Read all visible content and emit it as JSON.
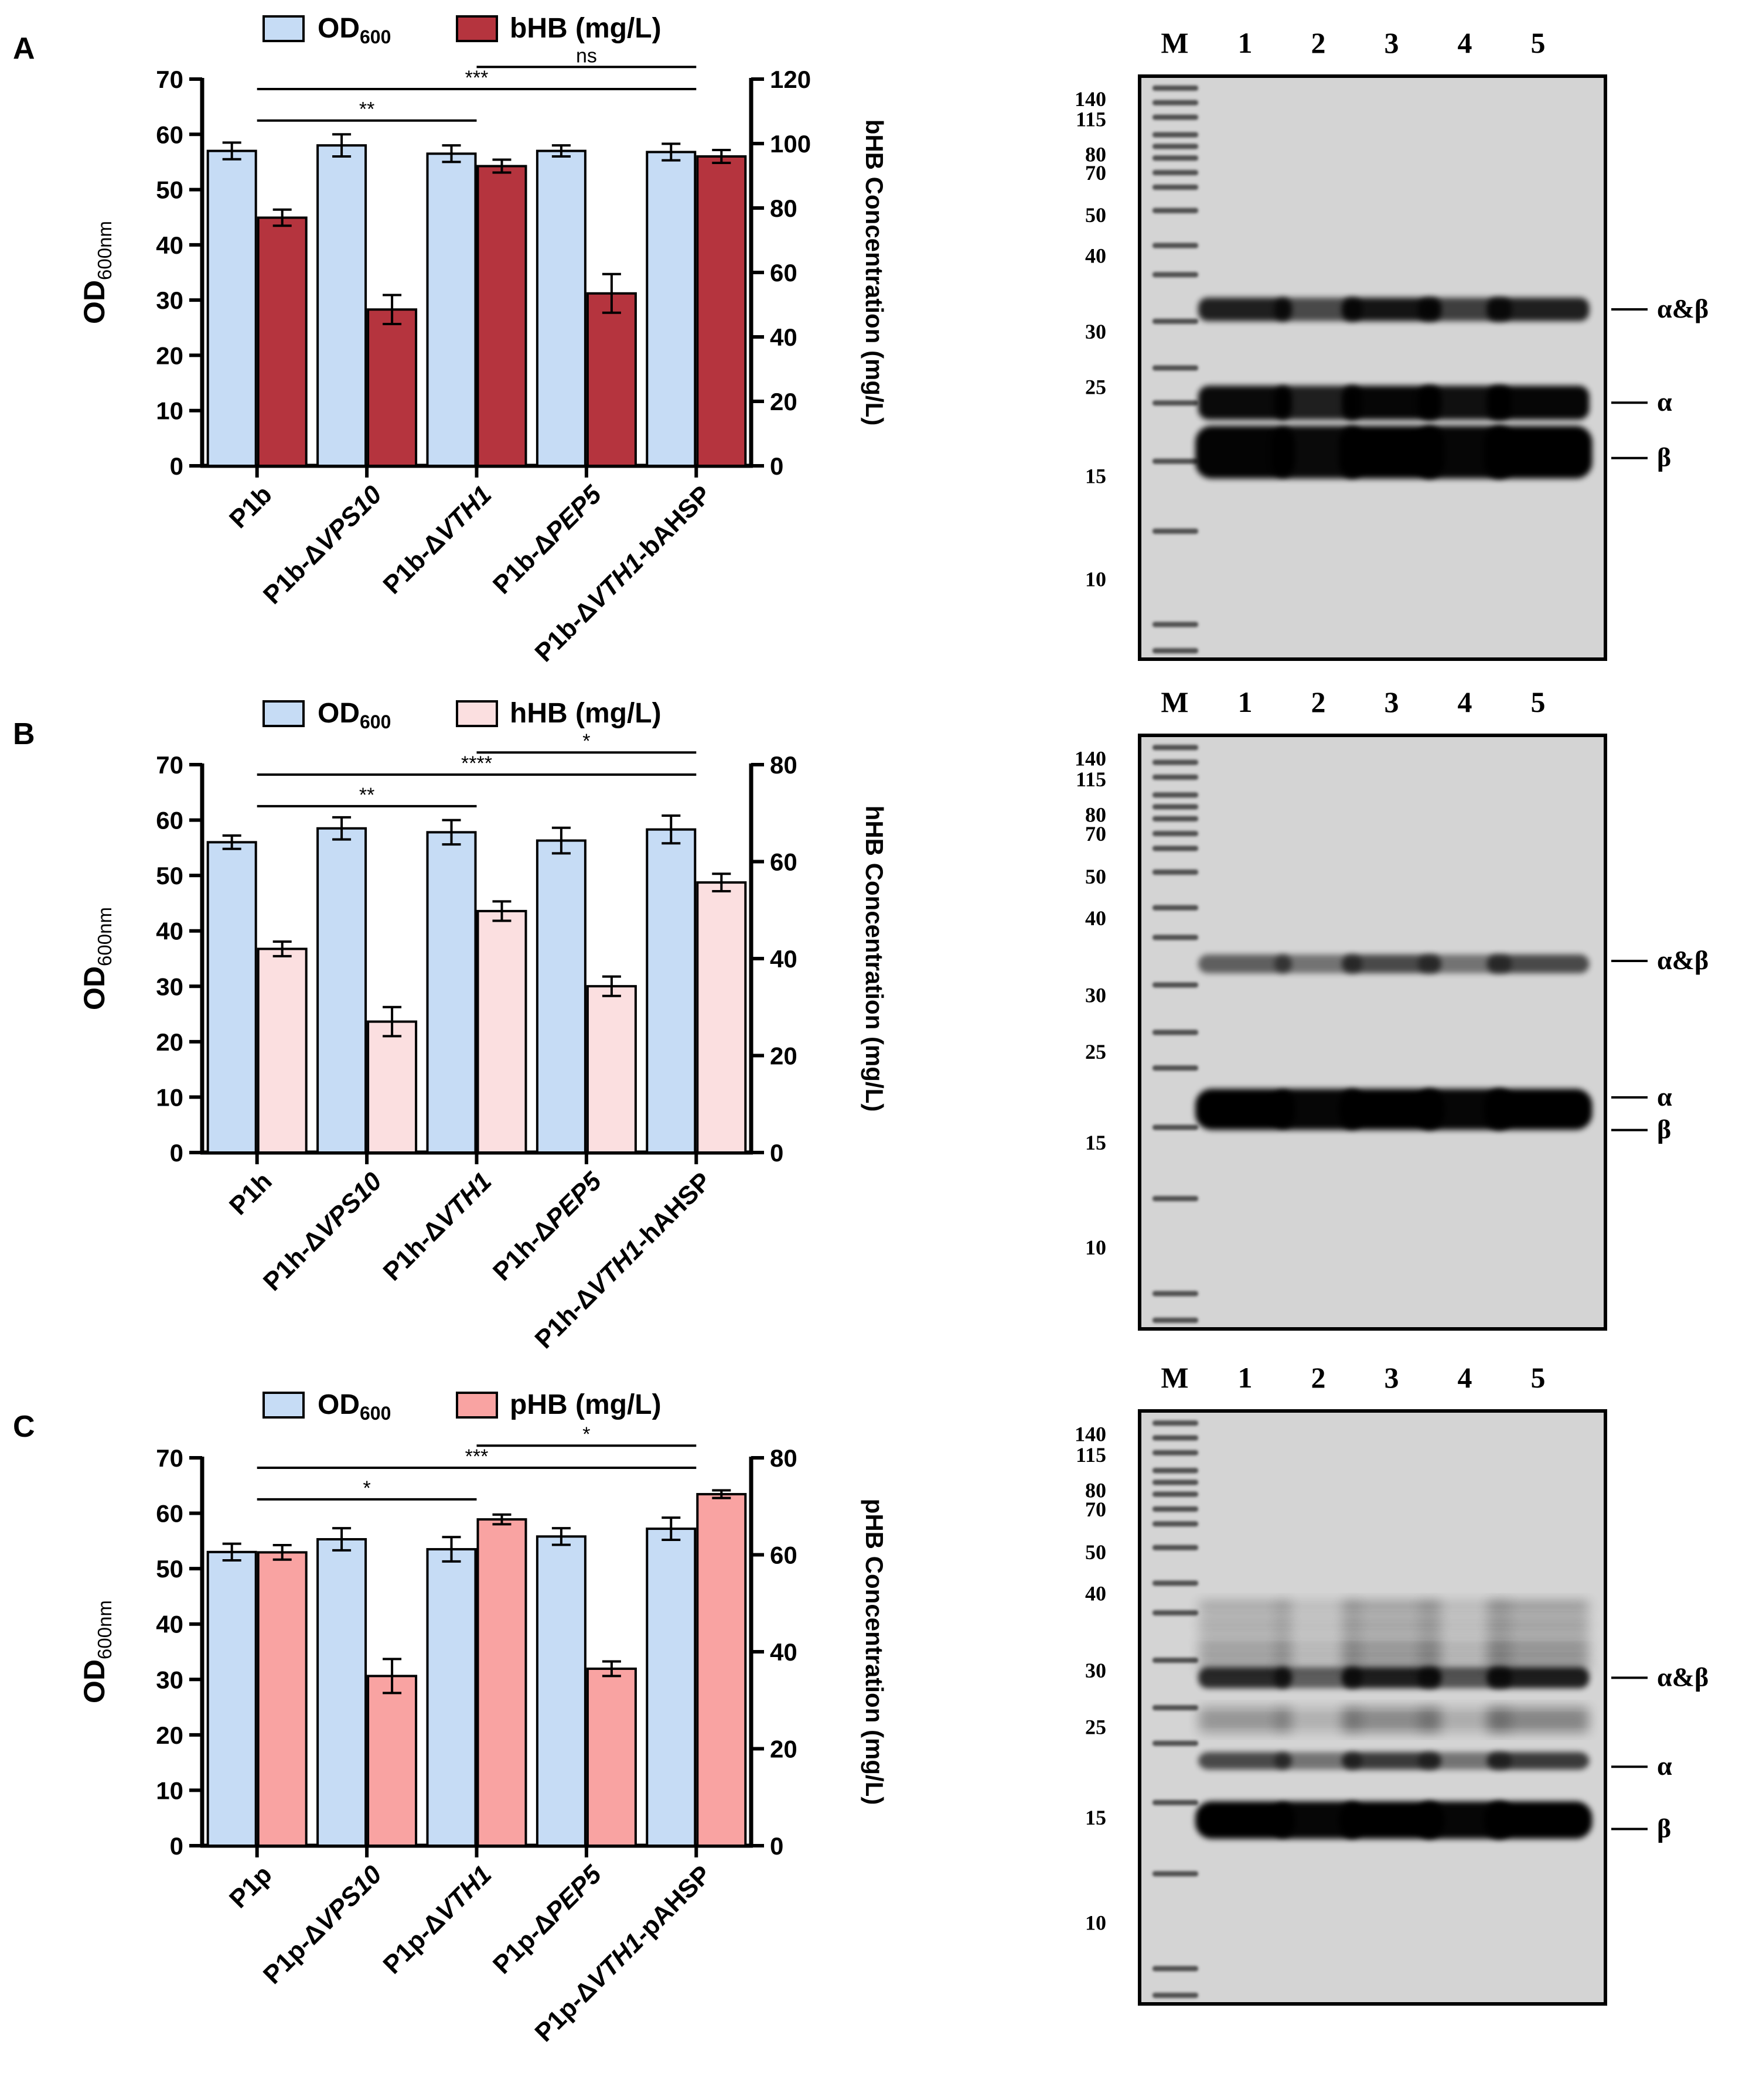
{
  "panels": [
    {
      "letter": "A",
      "chart_data": {
        "type": "bar",
        "categories": [
          "P1b",
          "P1b-ΔVPS10",
          "P1b-ΔVTH1",
          "P1b-ΔPEP5",
          "P1b-ΔVTH1-bAHSP"
        ],
        "category_parts": [
          [
            {
              "t": "P1b",
              "i": false
            }
          ],
          [
            {
              "t": "P1b-Δ",
              "i": false
            },
            {
              "t": "VPS10",
              "i": true
            }
          ],
          [
            {
              "t": "P1b-Δ",
              "i": false
            },
            {
              "t": "VTH1",
              "i": true
            }
          ],
          [
            {
              "t": "P1b-Δ",
              "i": false
            },
            {
              "t": "PEP5",
              "i": true
            }
          ],
          [
            {
              "t": "P1b-Δ",
              "i": false
            },
            {
              "t": "VTH1",
              "i": true
            },
            {
              "t": "-bAHSP",
              "i": false
            }
          ]
        ],
        "series": [
          {
            "name": "OD600",
            "name_main": "OD",
            "name_sub": "600",
            "axis": "left",
            "values": [
              57,
              58,
              56.5,
              57,
              56.8
            ],
            "errors": [
              1.5,
              2,
              1.5,
              1,
              1.5
            ],
            "color": "#c6dcf5"
          },
          {
            "name": "bHB (mg/L)",
            "axis": "right",
            "values": [
              77,
              48.5,
              93,
              53.5,
              96
            ],
            "errors": [
              2.5,
              4.5,
              2,
              6,
              2
            ],
            "color": "#b5343e"
          }
        ],
        "left_axis": {
          "label_main": "OD",
          "label_sub": "600nm",
          "ylim": [
            0,
            70
          ],
          "ticks": [
            "0",
            "10",
            "20",
            "30",
            "40",
            "50",
            "60",
            "70"
          ]
        },
        "right_axis": {
          "label": "bHB Concentration (mg/L)",
          "ylim": [
            0,
            120
          ],
          "ticks": [
            "0",
            "20",
            "40",
            "60",
            "80",
            "100",
            "120"
          ]
        },
        "legend_position": "top",
        "significance": [
          {
            "from": 0,
            "to": 2,
            "label": "**"
          },
          {
            "from": 0,
            "to": 4,
            "label": "***"
          },
          {
            "from": 2,
            "to": 4,
            "label": "ns"
          }
        ]
      },
      "gel": {
        "lanes": [
          "M",
          "1",
          "2",
          "3",
          "4",
          "5"
        ],
        "markers": [
          "140",
          "115",
          "80",
          "70",
          "50",
          "40",
          "30",
          "25",
          "15",
          "10"
        ],
        "band_labels": [
          "α&β",
          "α",
          "β"
        ],
        "band_intensity": {
          "alpha_beta": [
            0.85,
            0.65,
            0.9,
            0.7,
            0.85
          ],
          "alpha": [
            0.95,
            0.85,
            0.97,
            0.92,
            0.97
          ],
          "beta": [
            0.98,
            0.95,
            1.0,
            0.97,
            1.0
          ]
        }
      }
    },
    {
      "letter": "B",
      "chart_data": {
        "type": "bar",
        "categories": [
          "P1h",
          "P1h-ΔVPS10",
          "P1h-ΔVTH1",
          "P1h-ΔPEP5",
          "P1h-ΔVTH1-hAHSP"
        ],
        "category_parts": [
          [
            {
              "t": "P1h",
              "i": false
            }
          ],
          [
            {
              "t": "P1h-Δ",
              "i": false
            },
            {
              "t": "VPS10",
              "i": true
            }
          ],
          [
            {
              "t": "P1h-Δ",
              "i": false
            },
            {
              "t": "VTH1",
              "i": true
            }
          ],
          [
            {
              "t": "P1h-Δ",
              "i": false
            },
            {
              "t": "PEP5",
              "i": true
            }
          ],
          [
            {
              "t": "P1h-Δ",
              "i": false
            },
            {
              "t": "VTH1",
              "i": true
            },
            {
              "t": "-hAHSP",
              "i": false
            }
          ]
        ],
        "series": [
          {
            "name": "OD600",
            "name_main": "OD",
            "name_sub": "600",
            "axis": "left",
            "values": [
              56,
              58.5,
              57.8,
              56.3,
              58.3
            ],
            "errors": [
              1.2,
              2,
              2.2,
              2.3,
              2.5
            ],
            "color": "#c6dcf5"
          },
          {
            "name": "hHB (mg/L)",
            "axis": "right",
            "values": [
              42,
              27,
              49.8,
              34.3,
              55.7
            ],
            "errors": [
              1.5,
              3,
              2,
              2,
              1.8
            ],
            "color": "#fbdfe0"
          }
        ],
        "left_axis": {
          "label_main": "OD",
          "label_sub": "600nm",
          "ylim": [
            0,
            70
          ],
          "ticks": [
            "0",
            "10",
            "20",
            "30",
            "40",
            "50",
            "60",
            "70"
          ]
        },
        "right_axis": {
          "label": "hHB Concentration (mg/L)",
          "ylim": [
            0,
            80
          ],
          "ticks": [
            "0",
            "20",
            "40",
            "60",
            "80"
          ]
        },
        "legend_position": "top",
        "significance": [
          {
            "from": 0,
            "to": 2,
            "label": "**"
          },
          {
            "from": 0,
            "to": 4,
            "label": "****"
          },
          {
            "from": 2,
            "to": 4,
            "label": "*"
          }
        ]
      },
      "gel": {
        "lanes": [
          "M",
          "1",
          "2",
          "3",
          "4",
          "5"
        ],
        "markers": [
          "140",
          "115",
          "80",
          "70",
          "50",
          "40",
          "30",
          "25",
          "15",
          "10"
        ],
        "band_labels": [
          "α&β",
          "α",
          "β"
        ],
        "band_intensity": {
          "alpha_beta": [
            0.55,
            0.45,
            0.65,
            0.45,
            0.65
          ],
          "alpha": [
            1,
            1,
            1,
            1,
            1
          ],
          "beta": [
            1,
            0.97,
            1,
            0.97,
            1
          ]
        }
      }
    },
    {
      "letter": "C",
      "chart_data": {
        "type": "bar",
        "categories": [
          "P1p",
          "P1p-ΔVPS10",
          "P1p-ΔVTH1",
          "P1p-ΔPEP5",
          "P1p-ΔVTH1-pAHSP"
        ],
        "category_parts": [
          [
            {
              "t": "P1p",
              "i": false
            }
          ],
          [
            {
              "t": "P1p-Δ",
              "i": false
            },
            {
              "t": "VPS10",
              "i": true
            }
          ],
          [
            {
              "t": "P1p-Δ",
              "i": false
            },
            {
              "t": "VTH1",
              "i": true
            }
          ],
          [
            {
              "t": "P1p-Δ",
              "i": false
            },
            {
              "t": "PEP5",
              "i": true
            }
          ],
          [
            {
              "t": "P1p-Δ",
              "i": false
            },
            {
              "t": "VTH1",
              "i": true
            },
            {
              "t": "-pAHSP",
              "i": false
            }
          ]
        ],
        "series": [
          {
            "name": "OD600",
            "name_main": "OD",
            "name_sub": "600",
            "axis": "left",
            "values": [
              53,
              55.3,
              53.5,
              55.8,
              57.2
            ],
            "errors": [
              1.5,
              2,
              2.2,
              1.5,
              2
            ],
            "color": "#c6dcf5"
          },
          {
            "name": "pHB (mg/L)",
            "axis": "right",
            "values": [
              60.5,
              35,
              67.3,
              36.5,
              72.5
            ],
            "errors": [
              1.5,
              3.5,
              1,
              1.5,
              0.8
            ],
            "color": "#f9a3a2"
          }
        ],
        "left_axis": {
          "label_main": "OD",
          "label_sub": "600nm",
          "ylim": [
            0,
            70
          ],
          "ticks": [
            "0",
            "10",
            "20",
            "30",
            "40",
            "50",
            "60",
            "70"
          ]
        },
        "right_axis": {
          "label": "pHB Concentration (mg/L)",
          "ylim": [
            0,
            80
          ],
          "ticks": [
            "0",
            "20",
            "40",
            "60",
            "80"
          ]
        },
        "legend_position": "top",
        "significance": [
          {
            "from": 0,
            "to": 2,
            "label": "*"
          },
          {
            "from": 0,
            "to": 4,
            "label": "***"
          },
          {
            "from": 2,
            "to": 4,
            "label": "*"
          }
        ]
      },
      "gel": {
        "lanes": [
          "M",
          "1",
          "2",
          "3",
          "4",
          "5"
        ],
        "markers": [
          "140",
          "115",
          "80",
          "70",
          "50",
          "40",
          "30",
          "25",
          "15",
          "10"
        ],
        "band_labels": [
          "α&β",
          "α",
          "β"
        ],
        "band_intensity": {
          "alpha_beta": [
            0.8,
            0.55,
            0.85,
            0.6,
            0.85
          ],
          "alpha": [
            0.65,
            0.45,
            0.72,
            0.45,
            0.72
          ],
          "beta": [
            1,
            0.97,
            1,
            0.97,
            1
          ]
        },
        "smear": [
          0.65,
          0.35,
          0.8,
          0.4,
          0.85
        ]
      }
    }
  ]
}
